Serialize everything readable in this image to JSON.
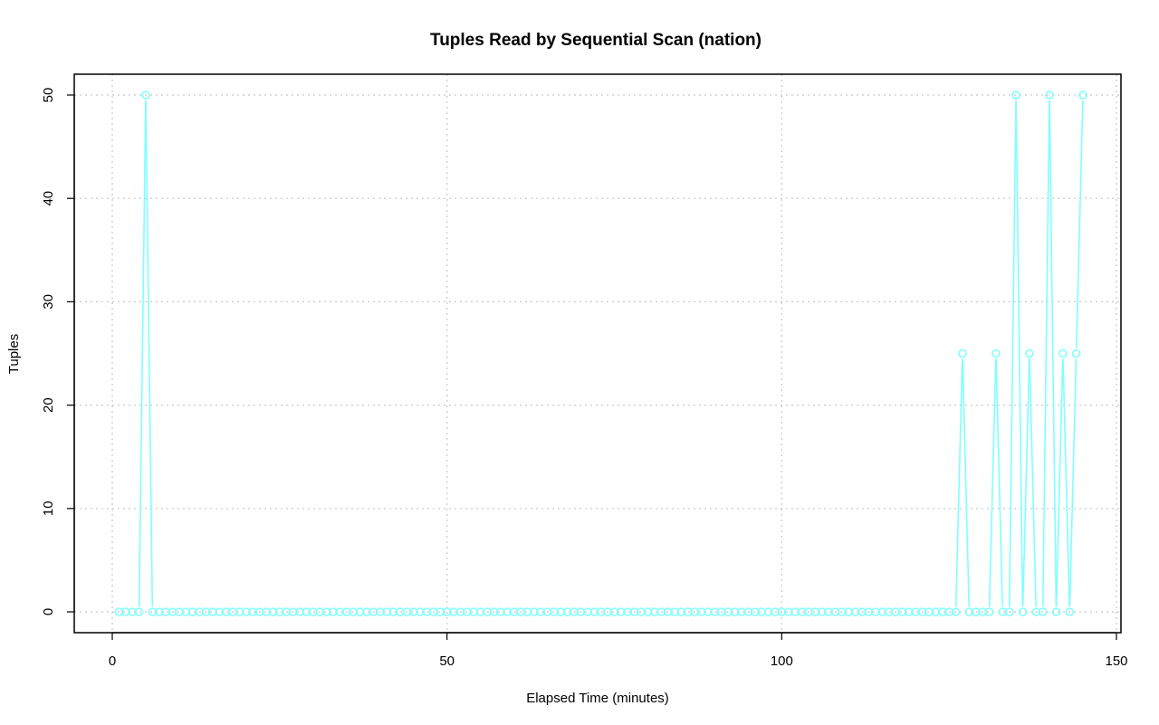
{
  "chart_data": {
    "type": "line",
    "title": "Tuples Read by Sequential Scan (nation)",
    "xlabel": "Elapsed Time (minutes)",
    "ylabel": "Tuples",
    "xlim": [
      0,
      150
    ],
    "ylim": [
      0,
      50
    ],
    "x_ticks": [
      0,
      50,
      100,
      150
    ],
    "y_ticks": [
      0,
      10,
      20,
      30,
      40,
      50
    ],
    "grid": true,
    "markers": "open-circle",
    "series_color": "#7fffff",
    "x_start": 1,
    "values": [
      0,
      0,
      0,
      0,
      50,
      0,
      0,
      0,
      0,
      0,
      0,
      0,
      0,
      0,
      0,
      0,
      0,
      0,
      0,
      0,
      0,
      0,
      0,
      0,
      0,
      0,
      0,
      0,
      0,
      0,
      0,
      0,
      0,
      0,
      0,
      0,
      0,
      0,
      0,
      0,
      0,
      0,
      0,
      0,
      0,
      0,
      0,
      0,
      0,
      0,
      0,
      0,
      0,
      0,
      0,
      0,
      0,
      0,
      0,
      0,
      0,
      0,
      0,
      0,
      0,
      0,
      0,
      0,
      0,
      0,
      0,
      0,
      0,
      0,
      0,
      0,
      0,
      0,
      0,
      0,
      0,
      0,
      0,
      0,
      0,
      0,
      0,
      0,
      0,
      0,
      0,
      0,
      0,
      0,
      0,
      0,
      0,
      0,
      0,
      0,
      0,
      0,
      0,
      0,
      0,
      0,
      0,
      0,
      0,
      0,
      0,
      0,
      0,
      0,
      0,
      0,
      0,
      0,
      0,
      0,
      0,
      0,
      0,
      0,
      0,
      0,
      25,
      0,
      0,
      0,
      0,
      25,
      0,
      0,
      50,
      0,
      25,
      0,
      0,
      50,
      0,
      25,
      0,
      25,
      50
    ]
  }
}
